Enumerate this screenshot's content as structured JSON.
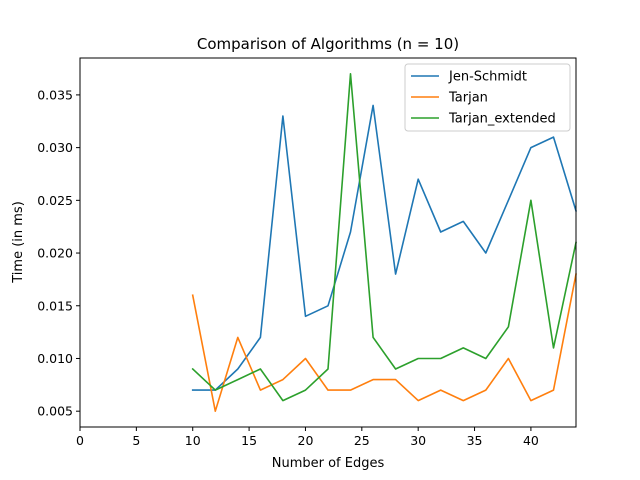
{
  "chart_data": {
    "type": "line",
    "title": "Comparison of Algorithms (n = 10)",
    "xlabel": "Number of Edges",
    "ylabel": "Time (in ms)",
    "xlim": [
      0,
      44
    ],
    "ylim": [
      0.0035,
      0.0385
    ],
    "xticks": [
      0,
      5,
      10,
      15,
      20,
      25,
      30,
      35,
      40
    ],
    "yticks": [
      0.005,
      0.01,
      0.015,
      0.02,
      0.025,
      0.03,
      0.035
    ],
    "ytick_labels": [
      "0.005",
      "0.010",
      "0.015",
      "0.020",
      "0.025",
      "0.030",
      "0.035"
    ],
    "grid": false,
    "legend_position": "top-right",
    "x": [
      10,
      12,
      14,
      16,
      18,
      20,
      22,
      24,
      26,
      28,
      30,
      32,
      34,
      36,
      38,
      40,
      42,
      44
    ],
    "series": [
      {
        "name": "Jen-Schmidt",
        "color": "#1f77b4",
        "values": [
          0.007,
          0.007,
          0.009,
          0.012,
          0.033,
          0.014,
          0.015,
          0.022,
          0.034,
          0.018,
          0.027,
          0.022,
          0.023,
          0.02,
          0.025,
          0.03,
          0.031,
          0.024
        ]
      },
      {
        "name": "Tarjan",
        "color": "#ff7f0e",
        "values": [
          0.016,
          0.005,
          0.012,
          0.007,
          0.008,
          0.01,
          0.007,
          0.007,
          0.008,
          0.008,
          0.006,
          0.007,
          0.006,
          0.007,
          0.01,
          0.006,
          0.007,
          0.018
        ]
      },
      {
        "name": "Tarjan_extended",
        "color": "#2ca02c",
        "values": [
          0.009,
          0.007,
          0.008,
          0.009,
          0.006,
          0.007,
          0.009,
          0.037,
          0.012,
          0.009,
          0.01,
          0.01,
          0.011,
          0.01,
          0.013,
          0.025,
          0.011,
          0.021
        ]
      }
    ]
  }
}
